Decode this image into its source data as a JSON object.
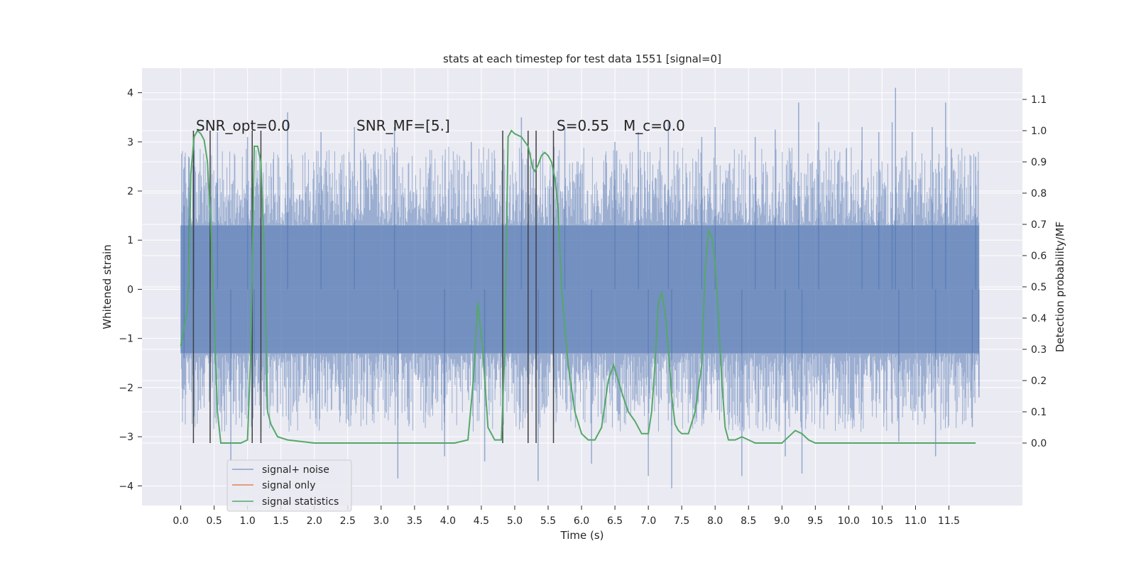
{
  "chart_data": {
    "type": "line",
    "title": "stats at each timestep for test data 1551 [signal=0]",
    "xlabel": "Time (s)",
    "ylabel_left": "Whitened strain",
    "ylabel_right": "Detection probability/MF",
    "xlim": [
      -0.58,
      12.6
    ],
    "ylim_left": [
      -4.4,
      4.5
    ],
    "ylim_right": [
      -0.2,
      1.2
    ],
    "x_ticks": [
      0.0,
      0.5,
      1.0,
      1.5,
      2.0,
      2.5,
      3.0,
      3.5,
      4.0,
      4.5,
      5.0,
      5.5,
      6.0,
      6.5,
      7.0,
      7.5,
      8.0,
      8.5,
      9.0,
      9.5,
      10.0,
      10.5,
      11.0,
      11.5
    ],
    "x_tick_labels": [
      "0.0",
      "0.5",
      "1.0",
      "1.5",
      "2.0",
      "2.5",
      "3.0",
      "3.5",
      "4.0",
      "4.5",
      "5.0",
      "5.5",
      "6.0",
      "6.5",
      "7.0",
      "7.5",
      "8.0",
      "8.5",
      "9.0",
      "9.5",
      "10.0",
      "10.5",
      "11.0",
      "11.5"
    ],
    "y_left_ticks": [
      4,
      3,
      2,
      1,
      0,
      -1,
      -2,
      -3,
      -4
    ],
    "y_left_tick_labels": [
      "4",
      "3",
      "2",
      "1",
      "0",
      "−1",
      "−2",
      "−3",
      "−4"
    ],
    "y_right_ticks": [
      1.1,
      1.0,
      0.9,
      0.8,
      0.7,
      0.6,
      0.5,
      0.4,
      0.3,
      0.2,
      0.1,
      0.0
    ],
    "y_right_tick_labels": [
      "1.1",
      "1.0",
      "0.9",
      "0.8",
      "0.7",
      "0.6",
      "0.5",
      "0.4",
      "0.3",
      "0.2",
      "0.1",
      "0.0"
    ],
    "annotations": {
      "snr_opt": "SNR_opt=0.0",
      "snr_mf": "SNR_MF=[5.]",
      "s": "S=0.55",
      "mc": "M_c=0.0"
    },
    "legend": {
      "placement": "lower-left",
      "entries": [
        "signal+ noise",
        "signal only",
        "signal statistics"
      ]
    },
    "colors": {
      "background": "#eaeaf2",
      "grid": "#ffffff",
      "noise": "#4c72b0",
      "signal_only": "#dd8452",
      "statistics": "#55a868",
      "marker_lines": "#404040"
    },
    "noise_series": {
      "name": "signal+ noise",
      "t_start": 0.0,
      "t_end": 11.95,
      "core_amplitude": 1.3,
      "typical_peak_amplitude": 2.6,
      "notable_peaks": [
        [
          0.05,
          1.7
        ],
        [
          0.05,
          -1.4
        ],
        [
          0.12,
          2.7
        ],
        [
          0.2,
          3.15
        ],
        [
          0.55,
          3.2
        ],
        [
          0.75,
          -3.5
        ],
        [
          1.0,
          3.1
        ],
        [
          1.1,
          -2.0
        ],
        [
          1.6,
          3.6
        ],
        [
          2.1,
          3.2
        ],
        [
          2.6,
          3.3
        ],
        [
          3.2,
          3.3
        ],
        [
          3.25,
          -3.85
        ],
        [
          3.95,
          -3.4
        ],
        [
          4.35,
          3.0
        ],
        [
          4.55,
          -3.5
        ],
        [
          5.1,
          3.5
        ],
        [
          5.35,
          -3.9
        ],
        [
          5.75,
          3.3
        ],
        [
          6.15,
          -3.55
        ],
        [
          6.5,
          3.0
        ],
        [
          6.85,
          3.2
        ],
        [
          7.0,
          -3.8
        ],
        [
          7.3,
          3.4
        ],
        [
          7.35,
          -4.05
        ],
        [
          7.8,
          3.1
        ],
        [
          8.0,
          3.3
        ],
        [
          8.4,
          -3.8
        ],
        [
          8.6,
          3.1
        ],
        [
          8.9,
          3.25
        ],
        [
          9.05,
          -3.4
        ],
        [
          9.25,
          3.8
        ],
        [
          9.3,
          -3.75
        ],
        [
          9.55,
          3.4
        ],
        [
          10.2,
          3.3
        ],
        [
          10.45,
          3.2
        ],
        [
          10.65,
          3.4
        ],
        [
          10.7,
          4.1
        ],
        [
          10.75,
          -3.1
        ],
        [
          10.95,
          3.2
        ],
        [
          11.25,
          3.3
        ],
        [
          11.3,
          -3.4
        ],
        [
          11.45,
          3.8
        ],
        [
          11.85,
          -2.8
        ],
        [
          11.9,
          2.7
        ],
        [
          11.95,
          -2.2
        ]
      ]
    },
    "statistics_series": {
      "name": "signal statistics",
      "x": [
        0.0,
        0.1,
        0.13,
        0.15,
        0.2,
        0.25,
        0.3,
        0.35,
        0.4,
        0.45,
        0.5,
        0.55,
        0.6,
        0.65,
        0.7,
        0.8,
        0.9,
        1.0,
        1.05,
        1.1,
        1.15,
        1.2,
        1.25,
        1.3,
        1.35,
        1.45,
        1.6,
        2.0,
        2.5,
        2.8,
        3.2,
        3.6,
        4.0,
        4.1,
        4.3,
        4.38,
        4.45,
        4.52,
        4.6,
        4.7,
        4.8,
        4.85,
        4.9,
        4.95,
        5.0,
        5.1,
        5.2,
        5.27,
        5.3,
        5.35,
        5.4,
        5.45,
        5.5,
        5.55,
        5.6,
        5.65,
        5.7,
        5.8,
        5.9,
        6.0,
        6.1,
        6.2,
        6.3,
        6.4,
        6.48,
        6.55,
        6.62,
        6.7,
        6.8,
        6.9,
        7.0,
        7.05,
        7.1,
        7.15,
        7.2,
        7.25,
        7.3,
        7.35,
        7.4,
        7.45,
        7.5,
        7.6,
        7.7,
        7.8,
        7.85,
        7.9,
        7.95,
        8.0,
        8.05,
        8.1,
        8.15,
        8.2,
        8.3,
        8.4,
        8.5,
        8.6,
        8.7,
        8.8,
        9.0,
        9.1,
        9.2,
        9.3,
        9.4,
        9.5,
        9.6,
        9.7,
        10.0,
        10.5,
        11.0,
        11.5,
        11.6,
        11.7,
        11.8,
        11.9
      ],
      "y": [
        0.31,
        0.43,
        0.6,
        0.86,
        0.98,
        1.0,
        0.99,
        0.97,
        0.9,
        0.7,
        0.4,
        0.1,
        0.0,
        0.0,
        0.0,
        0.0,
        0.0,
        0.01,
        0.3,
        0.95,
        0.95,
        0.9,
        0.6,
        0.1,
        0.06,
        0.02,
        0.01,
        0.0,
        0.0,
        0.0,
        0.0,
        0.0,
        0.0,
        0.0,
        0.01,
        0.2,
        0.45,
        0.3,
        0.05,
        0.01,
        0.01,
        0.3,
        0.98,
        1.0,
        0.99,
        0.98,
        0.95,
        0.88,
        0.87,
        0.89,
        0.92,
        0.93,
        0.92,
        0.9,
        0.85,
        0.75,
        0.5,
        0.25,
        0.1,
        0.03,
        0.01,
        0.01,
        0.05,
        0.2,
        0.25,
        0.2,
        0.15,
        0.1,
        0.07,
        0.03,
        0.03,
        0.1,
        0.25,
        0.45,
        0.48,
        0.42,
        0.3,
        0.15,
        0.06,
        0.04,
        0.03,
        0.03,
        0.1,
        0.25,
        0.55,
        0.68,
        0.66,
        0.58,
        0.4,
        0.2,
        0.05,
        0.01,
        0.01,
        0.02,
        0.01,
        0.0,
        0.0,
        0.0,
        0.0,
        0.02,
        0.04,
        0.03,
        0.01,
        0.0,
        0.0,
        0.0,
        0.0,
        0.0,
        0.0,
        0.0,
        0.0,
        0.0,
        0.0,
        0.0
      ]
    },
    "signal_only_series": {
      "name": "signal only",
      "x": [
        0.0,
        11.95
      ],
      "y": [
        0.0,
        0.0
      ]
    },
    "marker_lines_x": [
      0.19,
      0.44,
      1.07,
      1.2,
      4.82,
      5.2,
      5.32,
      5.58
    ],
    "marker_lines_ylim_right": [
      0.0,
      1.0
    ],
    "grid": true
  }
}
